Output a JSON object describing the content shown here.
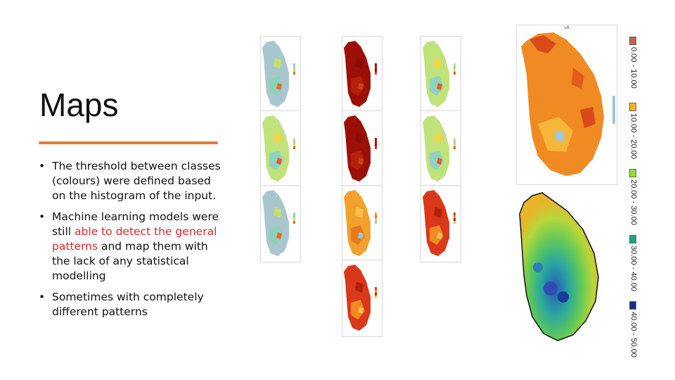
{
  "slide": {
    "title": "Maps",
    "accent_color": "#e07b39",
    "bullets": [
      {
        "text_before": "The threshold between classes (colours) were defined based on the histogram of the input.",
        "highlight": "",
        "text_after": ""
      },
      {
        "text_before": "Machine learning models were still ",
        "highlight": "able to detect the general patterns",
        "text_after": " and map them with the lack of any statistical modelling"
      },
      {
        "text_before": "Sometimes with completely different patterns",
        "highlight": "",
        "text_after": ""
      }
    ],
    "highlight_color": "#e0262c"
  },
  "thumbnails": [
    {
      "caption": "",
      "palette": "blue-green"
    },
    {
      "caption": "",
      "palette": "dark-red"
    },
    {
      "caption": "",
      "palette": "green-yellow"
    },
    {
      "caption": "",
      "palette": "green-yellow"
    },
    {
      "caption": "",
      "palette": "dark-red"
    },
    {
      "caption": "",
      "palette": "green-yellow"
    },
    {
      "caption": "",
      "palette": "blue-green"
    },
    {
      "caption": "",
      "palette": "orange"
    },
    {
      "caption": "",
      "palette": "red-orange"
    },
    {
      "caption": "",
      "palette": "red-orange"
    }
  ],
  "big_map": {
    "caption": "silt",
    "palette": "orange"
  },
  "bottom_map": {
    "palette": "green-blue-gradient"
  },
  "legend": [
    {
      "label": "0.00 - 10.00",
      "color": "#c0634a"
    },
    {
      "label": "10.00 - 20.00",
      "color": "#f2b51e"
    },
    {
      "label": "20.00 - 30.00",
      "color": "#8ee02e"
    },
    {
      "label": "30.00 - 40.00",
      "color": "#1aa685"
    },
    {
      "label": "40.00 - 50.00",
      "color": "#15318a"
    }
  ]
}
